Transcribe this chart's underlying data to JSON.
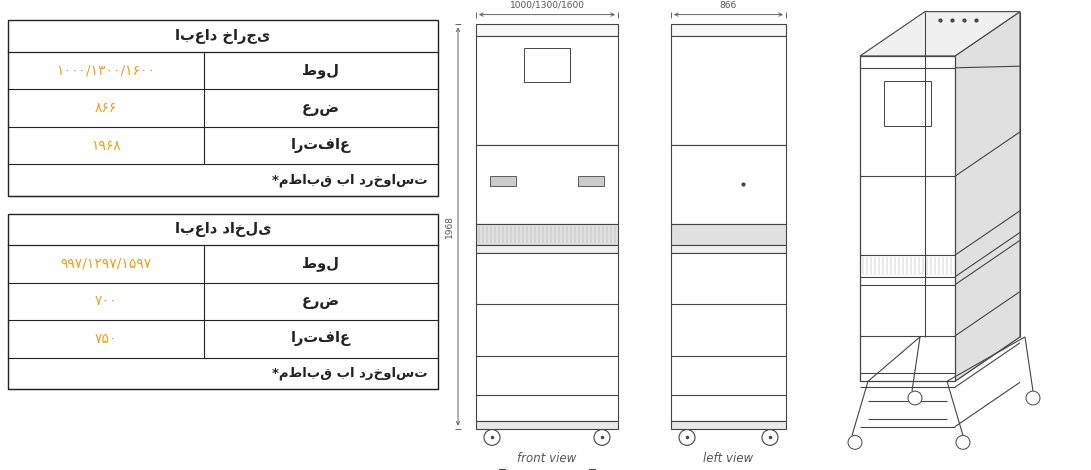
{
  "bg_color": "#ffffff",
  "table1_title": "ابعاد خارجی",
  "table1_rows": [
    [
      "۱۰۰۰/۱۳۰۰/۱۶۰۰",
      "طول"
    ],
    [
      "۸۶۶",
      "عرض"
    ],
    [
      "۱۹۶۸",
      "ارتفاع"
    ]
  ],
  "table1_note": "*مطابق با درخواست",
  "table2_title": "ابعاد داخلی",
  "table2_rows": [
    [
      "۹۹۷/۱۲۹۷/۱۵۹۷",
      "طول"
    ],
    [
      "۷۰۰",
      "عرض"
    ],
    [
      "۷۵۰",
      "ارتفاع"
    ]
  ],
  "table2_note": "*مطابق با درخواست",
  "orange_color": "#E8A020",
  "black_color": "#222222",
  "dim_color": "#555555",
  "label_front": "front view",
  "label_left": "left view",
  "dim_width": "1000/1300/1600",
  "dim_depth": "866",
  "dim_height": "1968"
}
